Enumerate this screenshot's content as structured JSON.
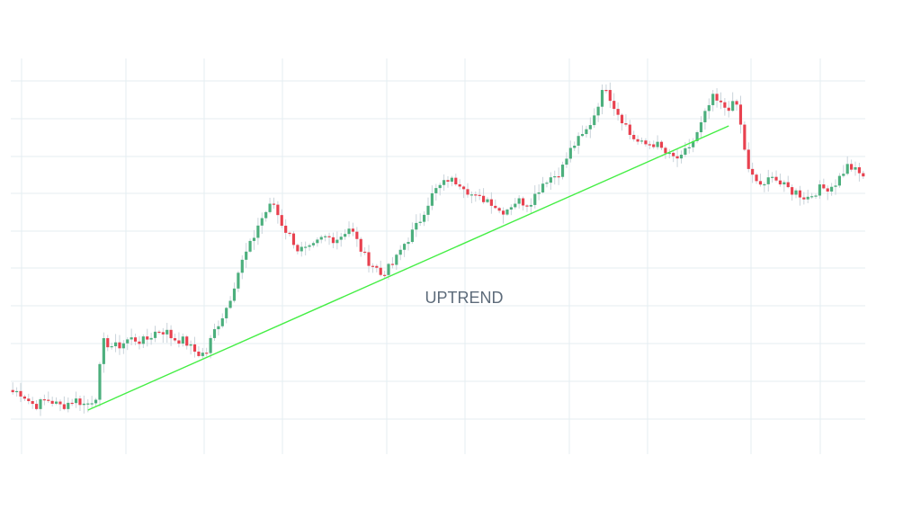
{
  "chart_data": {
    "type": "candlestick",
    "title": "",
    "xlabel": "",
    "ylabel": "",
    "grid": true,
    "ylim": [
      0,
      100
    ],
    "annotation": "UPTREND",
    "colors": {
      "up": "#4caf7d",
      "down": "#e8414f",
      "wick": "#c9d3da",
      "trendline": "#44ee44",
      "grid": "#e4edf2"
    },
    "trendline": {
      "from": {
        "index": 19,
        "value": 6
      },
      "to": {
        "index": 181,
        "value": 85
      }
    },
    "waypoints": [
      [
        0,
        11
      ],
      [
        6,
        8
      ],
      [
        18,
        8
      ],
      [
        21,
        10
      ],
      [
        23,
        24
      ],
      [
        30,
        25
      ],
      [
        39,
        28
      ],
      [
        45,
        23
      ],
      [
        49,
        22
      ],
      [
        55,
        38
      ],
      [
        62,
        58
      ],
      [
        66,
        63
      ],
      [
        72,
        50
      ],
      [
        85,
        56
      ],
      [
        93,
        43
      ],
      [
        100,
        53
      ],
      [
        104,
        62
      ],
      [
        110,
        71
      ],
      [
        115,
        67
      ],
      [
        123,
        62
      ],
      [
        130,
        64
      ],
      [
        139,
        74
      ],
      [
        147,
        88
      ],
      [
        150,
        96
      ],
      [
        156,
        82
      ],
      [
        165,
        78
      ],
      [
        169,
        75
      ],
      [
        177,
        92
      ],
      [
        183,
        90
      ],
      [
        186,
        73
      ],
      [
        190,
        67
      ],
      [
        192,
        72
      ],
      [
        197,
        66
      ],
      [
        201,
        66
      ],
      [
        205,
        67
      ],
      [
        211,
        73
      ],
      [
        215,
        72
      ]
    ]
  }
}
